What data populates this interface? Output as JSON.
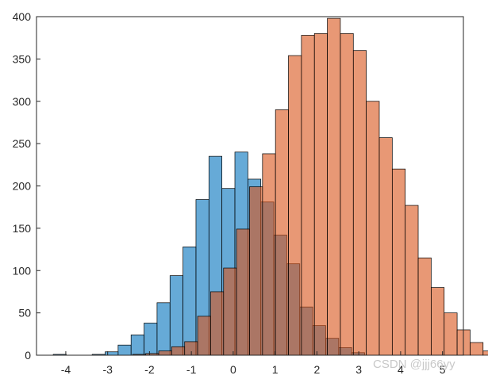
{
  "watermark": "CSDN @jjj66yy",
  "chart_data": {
    "type": "bar",
    "subtype": "overlapping histogram",
    "bin_width": 0.31,
    "xlim": [
      -4.7,
      5.5
    ],
    "ylim": [
      0,
      400
    ],
    "xticks": [
      -4,
      -3,
      -2,
      -1,
      0,
      1,
      2,
      3,
      4,
      5
    ],
    "yticks": [
      0,
      50,
      100,
      150,
      200,
      250,
      300,
      350,
      400
    ],
    "grid": false,
    "series": [
      {
        "color": "#0072BD",
        "alpha": 0.6,
        "bins": [
          {
            "x0": -4.3,
            "count": 1
          },
          {
            "x0": -3.37,
            "count": 1
          },
          {
            "x0": -3.06,
            "count": 4
          },
          {
            "x0": -2.75,
            "count": 12
          },
          {
            "x0": -2.44,
            "count": 24
          },
          {
            "x0": -2.13,
            "count": 38
          },
          {
            "x0": -1.82,
            "count": 62
          },
          {
            "x0": -1.51,
            "count": 94
          },
          {
            "x0": -1.2,
            "count": 128
          },
          {
            "x0": -0.89,
            "count": 184
          },
          {
            "x0": -0.58,
            "count": 235
          },
          {
            "x0": -0.27,
            "count": 197
          },
          {
            "x0": 0.04,
            "count": 240
          },
          {
            "x0": 0.35,
            "count": 208
          },
          {
            "x0": 0.66,
            "count": 181
          },
          {
            "x0": 0.97,
            "count": 142
          },
          {
            "x0": 1.28,
            "count": 108
          },
          {
            "x0": 1.59,
            "count": 57
          },
          {
            "x0": 1.9,
            "count": 35
          },
          {
            "x0": 2.21,
            "count": 20
          },
          {
            "x0": 2.52,
            "count": 9
          },
          {
            "x0": 2.83,
            "count": 3
          }
        ]
      },
      {
        "color": "#D95319",
        "alpha": 0.6,
        "bins": [
          {
            "x0": -2.4,
            "count": 1
          },
          {
            "x0": -2.09,
            "count": 2
          },
          {
            "x0": -1.78,
            "count": 5
          },
          {
            "x0": -1.47,
            "count": 10
          },
          {
            "x0": -1.16,
            "count": 16
          },
          {
            "x0": -0.85,
            "count": 46
          },
          {
            "x0": -0.54,
            "count": 75
          },
          {
            "x0": -0.23,
            "count": 103
          },
          {
            "x0": 0.08,
            "count": 149
          },
          {
            "x0": 0.39,
            "count": 199
          },
          {
            "x0": 0.7,
            "count": 238
          },
          {
            "x0": 1.01,
            "count": 290
          },
          {
            "x0": 1.32,
            "count": 354
          },
          {
            "x0": 1.63,
            "count": 378
          },
          {
            "x0": 1.94,
            "count": 380
          },
          {
            "x0": 2.25,
            "count": 398
          },
          {
            "x0": 2.56,
            "count": 380
          },
          {
            "x0": 2.87,
            "count": 360
          },
          {
            "x0": 3.18,
            "count": 300
          },
          {
            "x0": 3.49,
            "count": 257
          },
          {
            "x0": 3.8,
            "count": 220
          },
          {
            "x0": 4.11,
            "count": 177
          },
          {
            "x0": 4.42,
            "count": 115
          },
          {
            "x0": 4.73,
            "count": 80
          },
          {
            "x0": 5.04,
            "count": 50
          },
          {
            "x0": 5.35,
            "count": 30
          },
          {
            "x0": 5.66,
            "count": 15
          },
          {
            "x0": 5.97,
            "count": 5
          }
        ]
      }
    ]
  }
}
